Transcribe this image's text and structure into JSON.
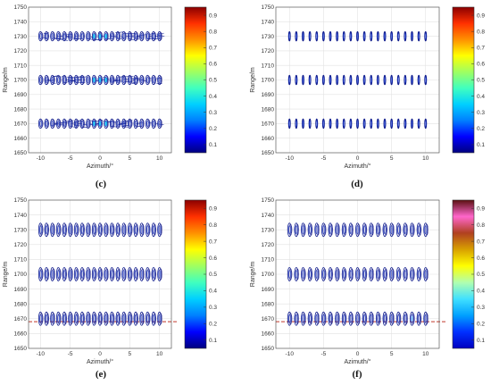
{
  "figure": {
    "colorbar_ticks": [
      "0.1",
      "0.2",
      "0.3",
      "0.4",
      "0.5",
      "0.6",
      "0.7",
      "0.8",
      "0.9"
    ],
    "colorbar_colors": [
      "#00007f",
      "#0000ff",
      "#0080ff",
      "#00d0ff",
      "#40ffbf",
      "#a0ff60",
      "#ffff00",
      "#ff9000",
      "#ff3000",
      "#8b0000"
    ],
    "colorbar_colors_f": [
      "#0000c0",
      "#0030ff",
      "#00a0ff",
      "#40e0ff",
      "#b0ffb0",
      "#ffff00",
      "#d8a000",
      "#b04020",
      "#ff66cc",
      "#5a1010"
    ]
  },
  "chart_data": [
    {
      "type": "contour",
      "panel": "(c)",
      "xlabel": "Azimuth/°",
      "ylabel": "Range/m",
      "xlim": [
        -12,
        12
      ],
      "ylim": [
        1650,
        1750
      ],
      "xticks": [
        "-10",
        "-5",
        "0",
        "5",
        "10"
      ],
      "yticks": [
        "1650",
        "1660",
        "1670",
        "1680",
        "1690",
        "1700",
        "1710",
        "1720",
        "1730",
        "1740",
        "1750"
      ],
      "grid": true,
      "clim": [
        0.05,
        0.95
      ],
      "colorbar_ticks": [
        "0.1",
        "0.2",
        "0.3",
        "0.4",
        "0.5",
        "0.6",
        "0.7",
        "0.8",
        "0.9"
      ],
      "rows_range": [
        1670,
        1700,
        1730
      ],
      "azimuth_extent": [
        -10,
        10
      ],
      "blobs_per_row": 21,
      "dashed_line": null
    },
    {
      "type": "contour",
      "panel": "(d)",
      "xlabel": "Azimuth/°",
      "ylabel": "Range/m",
      "xlim": [
        -12,
        12
      ],
      "ylim": [
        1650,
        1750
      ],
      "xticks": [
        "-10",
        "-5",
        "0",
        "5",
        "10"
      ],
      "yticks": [
        "1650",
        "1660",
        "1670",
        "1680",
        "1690",
        "1700",
        "1710",
        "1720",
        "1730",
        "1740",
        "1750"
      ],
      "grid": true,
      "clim": [
        0.05,
        0.95
      ],
      "colorbar_ticks": [
        "0.1",
        "0.2",
        "0.3",
        "0.4",
        "0.5",
        "0.6",
        "0.7",
        "0.8",
        "0.9"
      ],
      "rows_range": [
        1670,
        1700,
        1730
      ],
      "azimuth_extent": [
        -10,
        10
      ],
      "blobs_per_row": 21,
      "dashed_line": null
    },
    {
      "type": "contour",
      "panel": "(e)",
      "xlabel": "Azimuth/°",
      "ylabel": "Range/m",
      "xlim": [
        -12,
        12
      ],
      "ylim": [
        1650,
        1750
      ],
      "xticks": [
        "-10",
        "-5",
        "0",
        "5",
        "10"
      ],
      "yticks": [
        "1650",
        "1660",
        "1670",
        "1680",
        "1690",
        "1700",
        "1710",
        "1720",
        "1730",
        "1740",
        "1750"
      ],
      "grid": true,
      "clim": [
        0.05,
        0.95
      ],
      "colorbar_ticks": [
        "0.1",
        "0.2",
        "0.3",
        "0.4",
        "0.5",
        "0.6",
        "0.7",
        "0.8",
        "0.9"
      ],
      "rows_range": [
        1670,
        1700,
        1730
      ],
      "azimuth_extent": [
        -10,
        10
      ],
      "blobs_per_row": 21,
      "dashed_line": 1668
    },
    {
      "type": "contour",
      "panel": "(f)",
      "xlabel": "Azimuth/°",
      "ylabel": "Range/m",
      "xlim": [
        -12,
        12
      ],
      "ylim": [
        1650,
        1750
      ],
      "xticks": [
        "-10",
        "-5",
        "0",
        "5",
        "10"
      ],
      "yticks": [
        "1650",
        "1660",
        "1670",
        "1680",
        "1690",
        "1700",
        "1710",
        "1720",
        "1730",
        "1740",
        "1750"
      ],
      "grid": true,
      "clim": [
        0.05,
        0.95
      ],
      "colorbar_ticks": [
        "0.1",
        "0.2",
        "0.3",
        "0.4",
        "0.5",
        "0.6",
        "0.7",
        "0.8",
        "0.9"
      ],
      "rows_range": [
        1670,
        1700,
        1730
      ],
      "azimuth_extent": [
        -10,
        10
      ],
      "blobs_per_row": 21,
      "dashed_line": 1668
    }
  ]
}
